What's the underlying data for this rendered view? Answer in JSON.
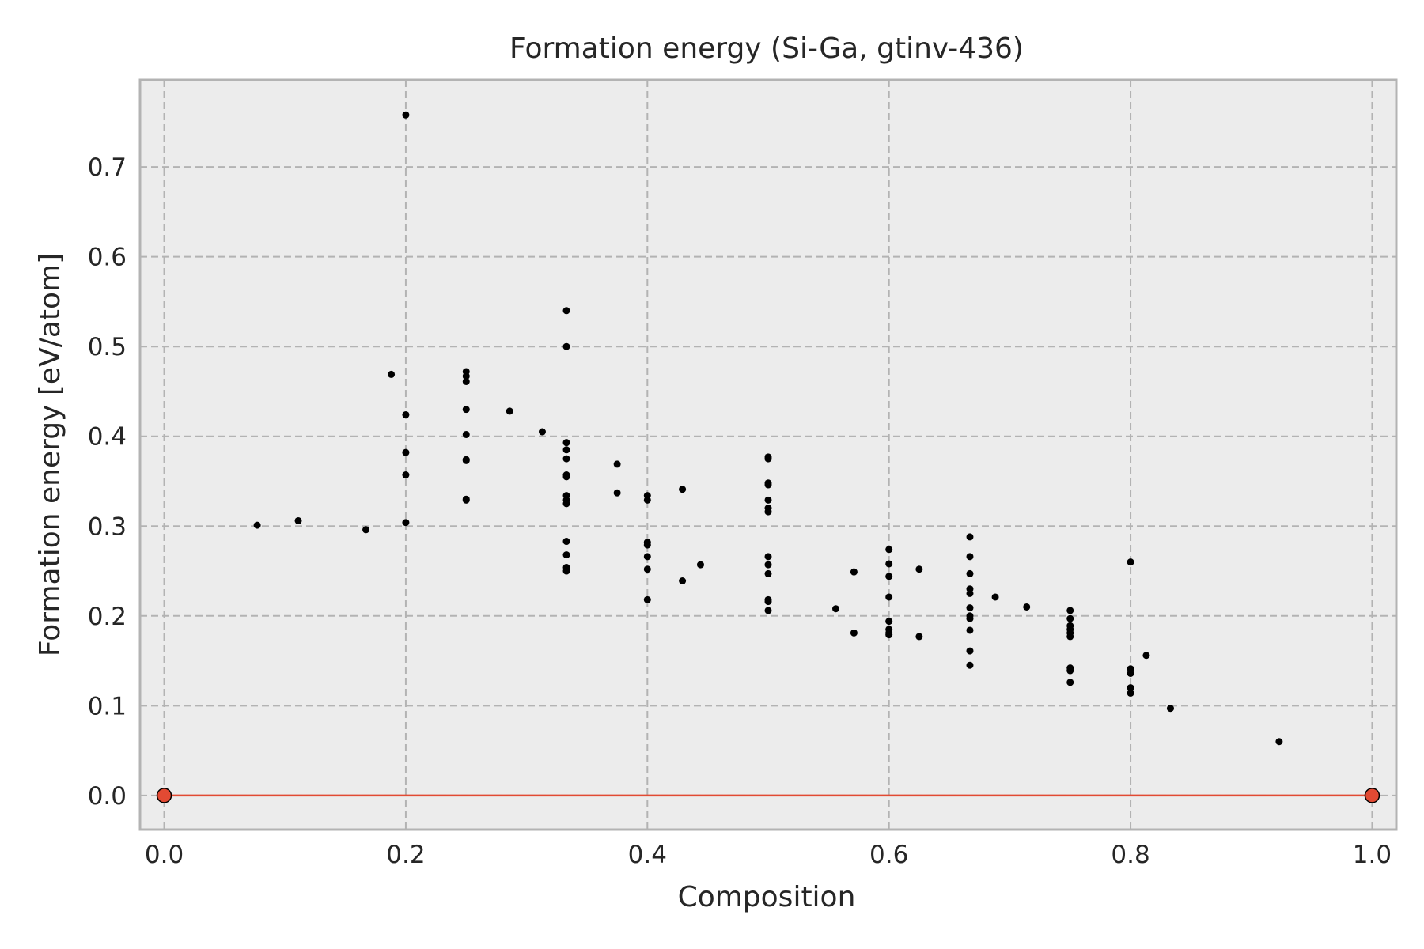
{
  "chart_data": {
    "type": "scatter",
    "title": "Formation energy (Si-Ga, gtinv-436)",
    "xlabel": "Composition",
    "ylabel": "Formation energy [eV/atom]",
    "xlim": [
      -0.02,
      1.02
    ],
    "ylim": [
      -0.038,
      0.797
    ],
    "xticks": [
      0.0,
      0.2,
      0.4,
      0.6,
      0.8,
      1.0
    ],
    "xtick_labels": [
      "0.0",
      "0.2",
      "0.4",
      "0.6",
      "0.8",
      "1.0"
    ],
    "yticks": [
      0.0,
      0.1,
      0.2,
      0.3,
      0.4,
      0.5,
      0.6,
      0.7
    ],
    "ytick_labels": [
      "0.0",
      "0.1",
      "0.2",
      "0.3",
      "0.4",
      "0.5",
      "0.6",
      "0.7"
    ],
    "grid": true,
    "colors": {
      "background": "#ececec",
      "frame": "#b3b3b3",
      "points": "#000000",
      "hull_line": "#e24a33",
      "hull_marker": "#e24a33"
    },
    "series": [
      {
        "kind": "structures",
        "points": [
          [
            0.077,
            0.301
          ],
          [
            0.111,
            0.306
          ],
          [
            0.167,
            0.296
          ],
          [
            0.188,
            0.469
          ],
          [
            0.2,
            0.758
          ],
          [
            0.2,
            0.424
          ],
          [
            0.2,
            0.382
          ],
          [
            0.2,
            0.357
          ],
          [
            0.2,
            0.304
          ],
          [
            0.25,
            0.472
          ],
          [
            0.25,
            0.467
          ],
          [
            0.25,
            0.461
          ],
          [
            0.25,
            0.43
          ],
          [
            0.25,
            0.402
          ],
          [
            0.25,
            0.374
          ],
          [
            0.25,
            0.373
          ],
          [
            0.25,
            0.33
          ],
          [
            0.25,
            0.329
          ],
          [
            0.286,
            0.428
          ],
          [
            0.313,
            0.405
          ],
          [
            0.333,
            0.54
          ],
          [
            0.333,
            0.5
          ],
          [
            0.333,
            0.393
          ],
          [
            0.333,
            0.385
          ],
          [
            0.333,
            0.375
          ],
          [
            0.333,
            0.357
          ],
          [
            0.333,
            0.355
          ],
          [
            0.333,
            0.334
          ],
          [
            0.333,
            0.329
          ],
          [
            0.333,
            0.325
          ],
          [
            0.333,
            0.283
          ],
          [
            0.333,
            0.268
          ],
          [
            0.333,
            0.254
          ],
          [
            0.333,
            0.25
          ],
          [
            0.375,
            0.369
          ],
          [
            0.375,
            0.337
          ],
          [
            0.4,
            0.334
          ],
          [
            0.4,
            0.329
          ],
          [
            0.4,
            0.282
          ],
          [
            0.4,
            0.279
          ],
          [
            0.4,
            0.266
          ],
          [
            0.4,
            0.252
          ],
          [
            0.4,
            0.218
          ],
          [
            0.429,
            0.341
          ],
          [
            0.429,
            0.239
          ],
          [
            0.444,
            0.257
          ],
          [
            0.5,
            0.377
          ],
          [
            0.5,
            0.375
          ],
          [
            0.5,
            0.348
          ],
          [
            0.5,
            0.346
          ],
          [
            0.5,
            0.329
          ],
          [
            0.5,
            0.32
          ],
          [
            0.5,
            0.316
          ],
          [
            0.5,
            0.266
          ],
          [
            0.5,
            0.257
          ],
          [
            0.5,
            0.247
          ],
          [
            0.5,
            0.218
          ],
          [
            0.5,
            0.216
          ],
          [
            0.5,
            0.206
          ],
          [
            0.556,
            0.208
          ],
          [
            0.571,
            0.249
          ],
          [
            0.571,
            0.181
          ],
          [
            0.6,
            0.274
          ],
          [
            0.6,
            0.258
          ],
          [
            0.6,
            0.244
          ],
          [
            0.6,
            0.221
          ],
          [
            0.6,
            0.194
          ],
          [
            0.6,
            0.185
          ],
          [
            0.6,
            0.181
          ],
          [
            0.6,
            0.179
          ],
          [
            0.625,
            0.252
          ],
          [
            0.625,
            0.177
          ],
          [
            0.667,
            0.288
          ],
          [
            0.667,
            0.266
          ],
          [
            0.667,
            0.247
          ],
          [
            0.667,
            0.23
          ],
          [
            0.667,
            0.225
          ],
          [
            0.667,
            0.209
          ],
          [
            0.667,
            0.2
          ],
          [
            0.667,
            0.197
          ],
          [
            0.667,
            0.184
          ],
          [
            0.667,
            0.161
          ],
          [
            0.667,
            0.145
          ],
          [
            0.688,
            0.221
          ],
          [
            0.714,
            0.21
          ],
          [
            0.75,
            0.206
          ],
          [
            0.75,
            0.197
          ],
          [
            0.75,
            0.189
          ],
          [
            0.75,
            0.185
          ],
          [
            0.75,
            0.181
          ],
          [
            0.75,
            0.177
          ],
          [
            0.75,
            0.142
          ],
          [
            0.75,
            0.139
          ],
          [
            0.75,
            0.126
          ],
          [
            0.8,
            0.26
          ],
          [
            0.8,
            0.141
          ],
          [
            0.8,
            0.136
          ],
          [
            0.8,
            0.12
          ],
          [
            0.8,
            0.114
          ],
          [
            0.813,
            0.156
          ],
          [
            0.833,
            0.097
          ],
          [
            0.923,
            0.06
          ]
        ]
      },
      {
        "kind": "convex_hull",
        "points": [
          [
            0.0,
            0.0
          ],
          [
            1.0,
            0.0
          ]
        ]
      }
    ]
  }
}
